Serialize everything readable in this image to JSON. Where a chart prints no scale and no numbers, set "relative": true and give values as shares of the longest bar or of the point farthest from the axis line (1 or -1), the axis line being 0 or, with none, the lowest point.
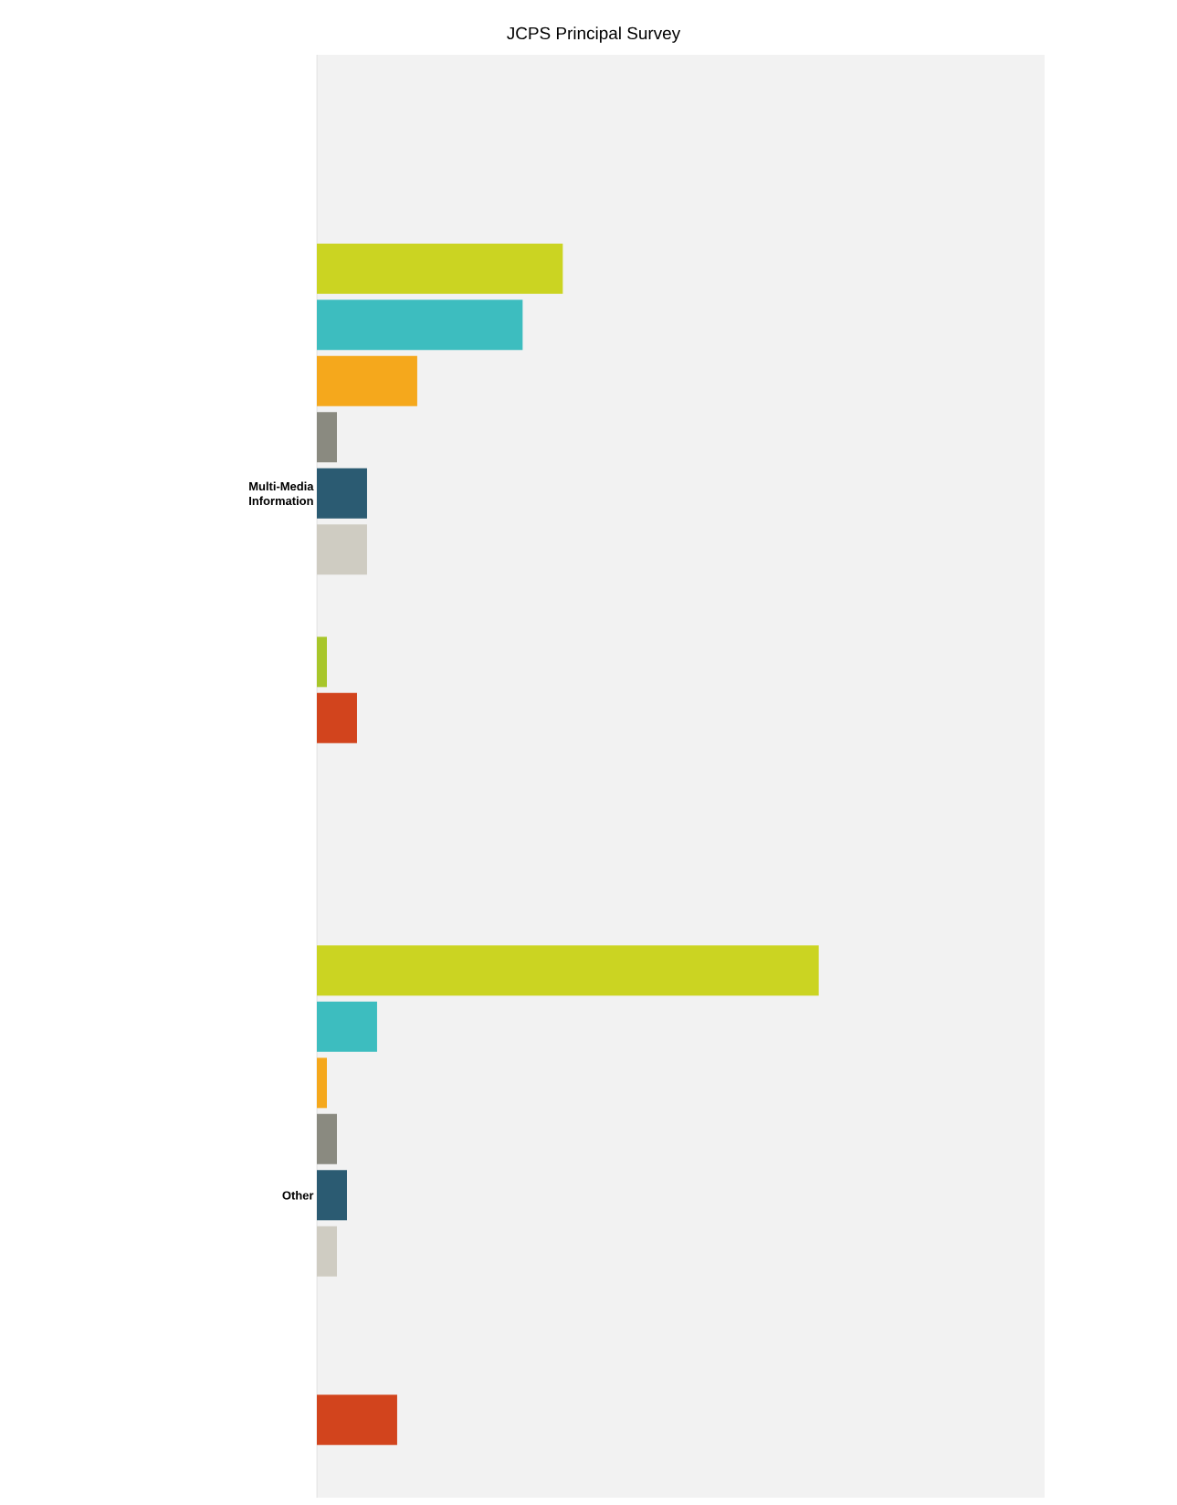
{
  "chart_data": {
    "type": "bar",
    "title": "JCPS Principal Survey",
    "orientation": "horizontal",
    "relative": true,
    "categories": [
      "Multi-Media Information",
      "Other"
    ],
    "series": [
      {
        "color": "#cbd422",
        "values": [
          0.49,
          1
        ]
      },
      {
        "color": "#3dbdbf",
        "values": [
          0.41,
          0.12
        ]
      },
      {
        "color": "#f5a81c",
        "values": [
          0.2,
          0.02
        ]
      },
      {
        "color": "#8a8a80",
        "values": [
          0.04,
          0.04
        ]
      },
      {
        "color": "#2b5b72",
        "values": [
          0.1,
          0.06
        ]
      },
      {
        "color": "#cfccc2",
        "values": [
          0.1,
          0.04
        ]
      },
      {
        "color": "#6c8a3a",
        "values": [
          null,
          null
        ]
      },
      {
        "color": "#a8c62a",
        "values": [
          0.02,
          null
        ]
      },
      {
        "color": "#d2441d",
        "values": [
          0.08,
          0.16
        ]
      }
    ]
  }
}
